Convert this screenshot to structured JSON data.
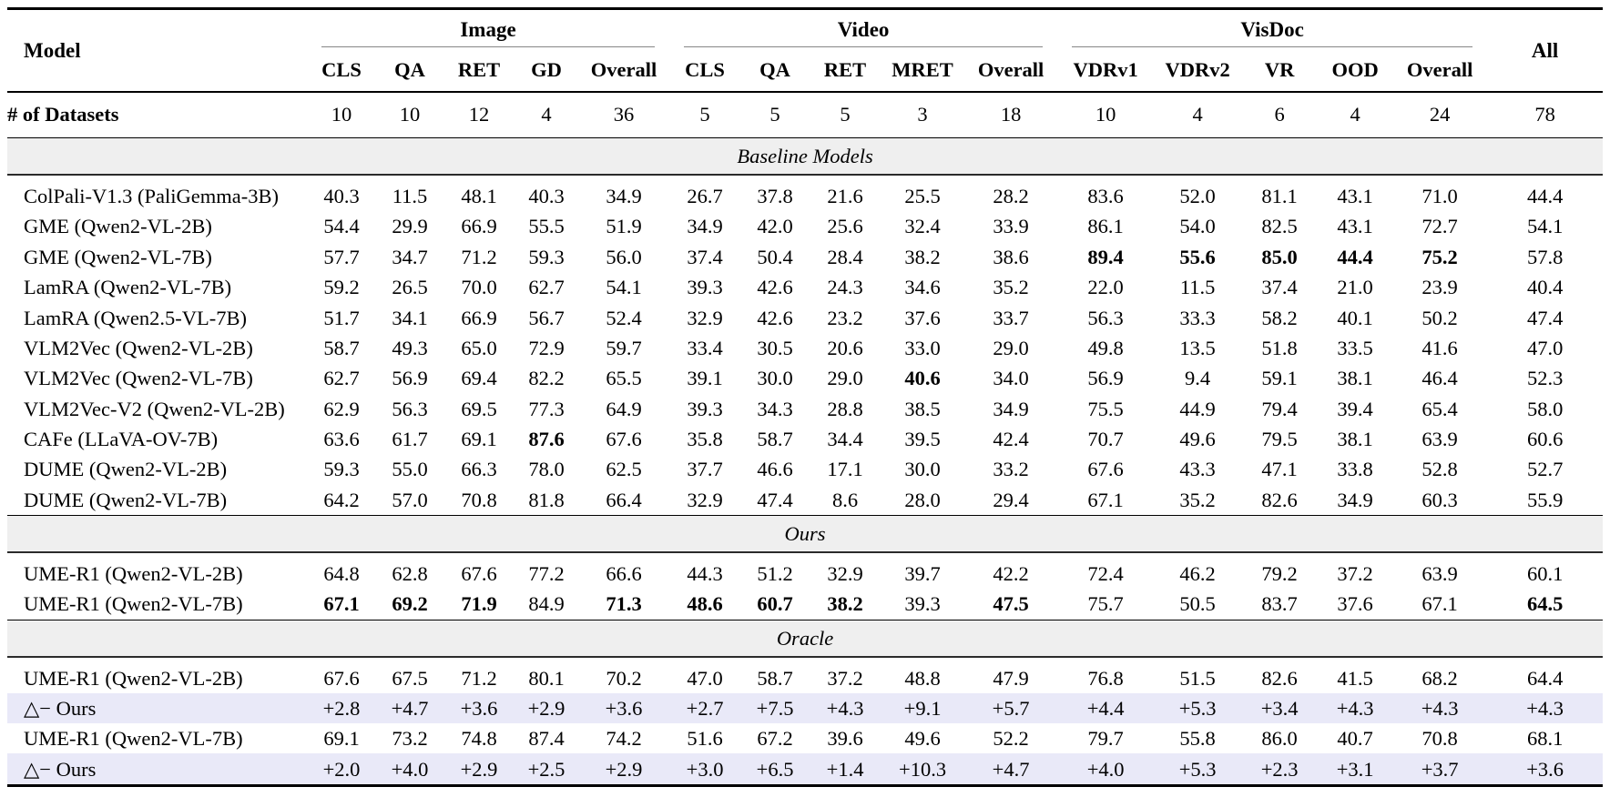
{
  "colors": {
    "band_bg": "#efefef",
    "delta_bg": "#e9e9f8",
    "rule": "#000000",
    "cmidrule": "#878787"
  },
  "table": {
    "model_header": "Model",
    "all_header": "All",
    "col_groups": [
      {
        "label": "Image",
        "cols": [
          "CLS",
          "QA",
          "RET",
          "GD",
          "Overall"
        ]
      },
      {
        "label": "Video",
        "cols": [
          "CLS",
          "QA",
          "RET",
          "MRET",
          "Overall"
        ]
      },
      {
        "label": "VisDoc",
        "cols": [
          "VDRv1",
          "VDRv2",
          "VR",
          "OOD",
          "Overall"
        ]
      }
    ],
    "datasets_row": {
      "label": "# of Datasets",
      "values": [
        "10",
        "10",
        "12",
        "4",
        "36",
        "5",
        "5",
        "5",
        "3",
        "18",
        "10",
        "4",
        "6",
        "4",
        "24",
        "78"
      ]
    },
    "sections": [
      {
        "title": "Baseline Models",
        "rows": [
          {
            "model": "ColPali-V1.3 (PaliGemma-3B)",
            "values": [
              "40.3",
              "11.5",
              "48.1",
              "40.3",
              "34.9",
              "26.7",
              "37.8",
              "21.6",
              "25.5",
              "28.2",
              "83.6",
              "52.0",
              "81.1",
              "43.1",
              "71.0",
              "44.4"
            ],
            "bold": []
          },
          {
            "model": "GME (Qwen2-VL-2B)",
            "values": [
              "54.4",
              "29.9",
              "66.9",
              "55.5",
              "51.9",
              "34.9",
              "42.0",
              "25.6",
              "32.4",
              "33.9",
              "86.1",
              "54.0",
              "82.5",
              "43.1",
              "72.7",
              "54.1"
            ],
            "bold": []
          },
          {
            "model": "GME (Qwen2-VL-7B)",
            "values": [
              "57.7",
              "34.7",
              "71.2",
              "59.3",
              "56.0",
              "37.4",
              "50.4",
              "28.4",
              "38.2",
              "38.6",
              "89.4",
              "55.6",
              "85.0",
              "44.4",
              "75.2",
              "57.8"
            ],
            "bold": [
              10,
              11,
              12,
              13,
              14
            ]
          },
          {
            "model": "LamRA (Qwen2-VL-7B)",
            "values": [
              "59.2",
              "26.5",
              "70.0",
              "62.7",
              "54.1",
              "39.3",
              "42.6",
              "24.3",
              "34.6",
              "35.2",
              "22.0",
              "11.5",
              "37.4",
              "21.0",
              "23.9",
              "40.4"
            ],
            "bold": []
          },
          {
            "model": "LamRA (Qwen2.5-VL-7B)",
            "values": [
              "51.7",
              "34.1",
              "66.9",
              "56.7",
              "52.4",
              "32.9",
              "42.6",
              "23.2",
              "37.6",
              "33.7",
              "56.3",
              "33.3",
              "58.2",
              "40.1",
              "50.2",
              "47.4"
            ],
            "bold": []
          },
          {
            "model": "VLM2Vec (Qwen2-VL-2B)",
            "values": [
              "58.7",
              "49.3",
              "65.0",
              "72.9",
              "59.7",
              "33.4",
              "30.5",
              "20.6",
              "33.0",
              "29.0",
              "49.8",
              "13.5",
              "51.8",
              "33.5",
              "41.6",
              "47.0"
            ],
            "bold": []
          },
          {
            "model": "VLM2Vec (Qwen2-VL-7B)",
            "values": [
              "62.7",
              "56.9",
              "69.4",
              "82.2",
              "65.5",
              "39.1",
              "30.0",
              "29.0",
              "40.6",
              "34.0",
              "56.9",
              "9.4",
              "59.1",
              "38.1",
              "46.4",
              "52.3"
            ],
            "bold": [
              8
            ]
          },
          {
            "model": "VLM2Vec-V2 (Qwen2-VL-2B)",
            "values": [
              "62.9",
              "56.3",
              "69.5",
              "77.3",
              "64.9",
              "39.3",
              "34.3",
              "28.8",
              "38.5",
              "34.9",
              "75.5",
              "44.9",
              "79.4",
              "39.4",
              "65.4",
              "58.0"
            ],
            "bold": []
          },
          {
            "model": "CAFe (LLaVA-OV-7B)",
            "values": [
              "63.6",
              "61.7",
              "69.1",
              "87.6",
              "67.6",
              "35.8",
              "58.7",
              "34.4",
              "39.5",
              "42.4",
              "70.7",
              "49.6",
              "79.5",
              "38.1",
              "63.9",
              "60.6"
            ],
            "bold": [
              3
            ]
          },
          {
            "model": "DUME (Qwen2-VL-2B)",
            "values": [
              "59.3",
              "55.0",
              "66.3",
              "78.0",
              "62.5",
              "37.7",
              "46.6",
              "17.1",
              "30.0",
              "33.2",
              "67.6",
              "43.3",
              "47.1",
              "33.8",
              "52.8",
              "52.7"
            ],
            "bold": []
          },
          {
            "model": "DUME (Qwen2-VL-7B)",
            "values": [
              "64.2",
              "57.0",
              "70.8",
              "81.8",
              "66.4",
              "32.9",
              "47.4",
              "8.6",
              "28.0",
              "29.4",
              "67.1",
              "35.2",
              "82.6",
              "34.9",
              "60.3",
              "55.9"
            ],
            "bold": []
          }
        ]
      },
      {
        "title": "Ours",
        "rows": [
          {
            "model": "UME-R1 (Qwen2-VL-2B)",
            "values": [
              "64.8",
              "62.8",
              "67.6",
              "77.2",
              "66.6",
              "44.3",
              "51.2",
              "32.9",
              "39.7",
              "42.2",
              "72.4",
              "46.2",
              "79.2",
              "37.2",
              "63.9",
              "60.1"
            ],
            "bold": []
          },
          {
            "model": "UME-R1 (Qwen2-VL-7B)",
            "values": [
              "67.1",
              "69.2",
              "71.9",
              "84.9",
              "71.3",
              "48.6",
              "60.7",
              "38.2",
              "39.3",
              "47.5",
              "75.7",
              "50.5",
              "83.7",
              "37.6",
              "67.1",
              "64.5"
            ],
            "bold": [
              0,
              1,
              2,
              4,
              5,
              6,
              7,
              9,
              15
            ]
          }
        ]
      },
      {
        "title": "Oracle",
        "rows": [
          {
            "model": "UME-R1 (Qwen2-VL-2B)",
            "values": [
              "67.6",
              "67.5",
              "71.2",
              "80.1",
              "70.2",
              "47.0",
              "58.7",
              "37.2",
              "48.8",
              "47.9",
              "76.8",
              "51.5",
              "82.6",
              "41.5",
              "68.2",
              "64.4"
            ],
            "bold": []
          },
          {
            "model": "△− Ours",
            "delta": true,
            "values": [
              "+2.8",
              "+4.7",
              "+3.6",
              "+2.9",
              "+3.6",
              "+2.7",
              "+7.5",
              "+4.3",
              "+9.1",
              "+5.7",
              "+4.4",
              "+5.3",
              "+3.4",
              "+4.3",
              "+4.3",
              "+4.3"
            ],
            "bold": []
          },
          {
            "model": "UME-R1 (Qwen2-VL-7B)",
            "values": [
              "69.1",
              "73.2",
              "74.8",
              "87.4",
              "74.2",
              "51.6",
              "67.2",
              "39.6",
              "49.6",
              "52.2",
              "79.7",
              "55.8",
              "86.0",
              "40.7",
              "70.8",
              "68.1"
            ],
            "bold": []
          },
          {
            "model": "△− Ours",
            "delta": true,
            "values": [
              "+2.0",
              "+4.0",
              "+2.9",
              "+2.5",
              "+2.9",
              "+3.0",
              "+6.5",
              "+1.4",
              "+10.3",
              "+4.7",
              "+4.0",
              "+5.3",
              "+2.3",
              "+3.1",
              "+3.7",
              "+3.6"
            ],
            "bold": []
          }
        ]
      }
    ]
  }
}
